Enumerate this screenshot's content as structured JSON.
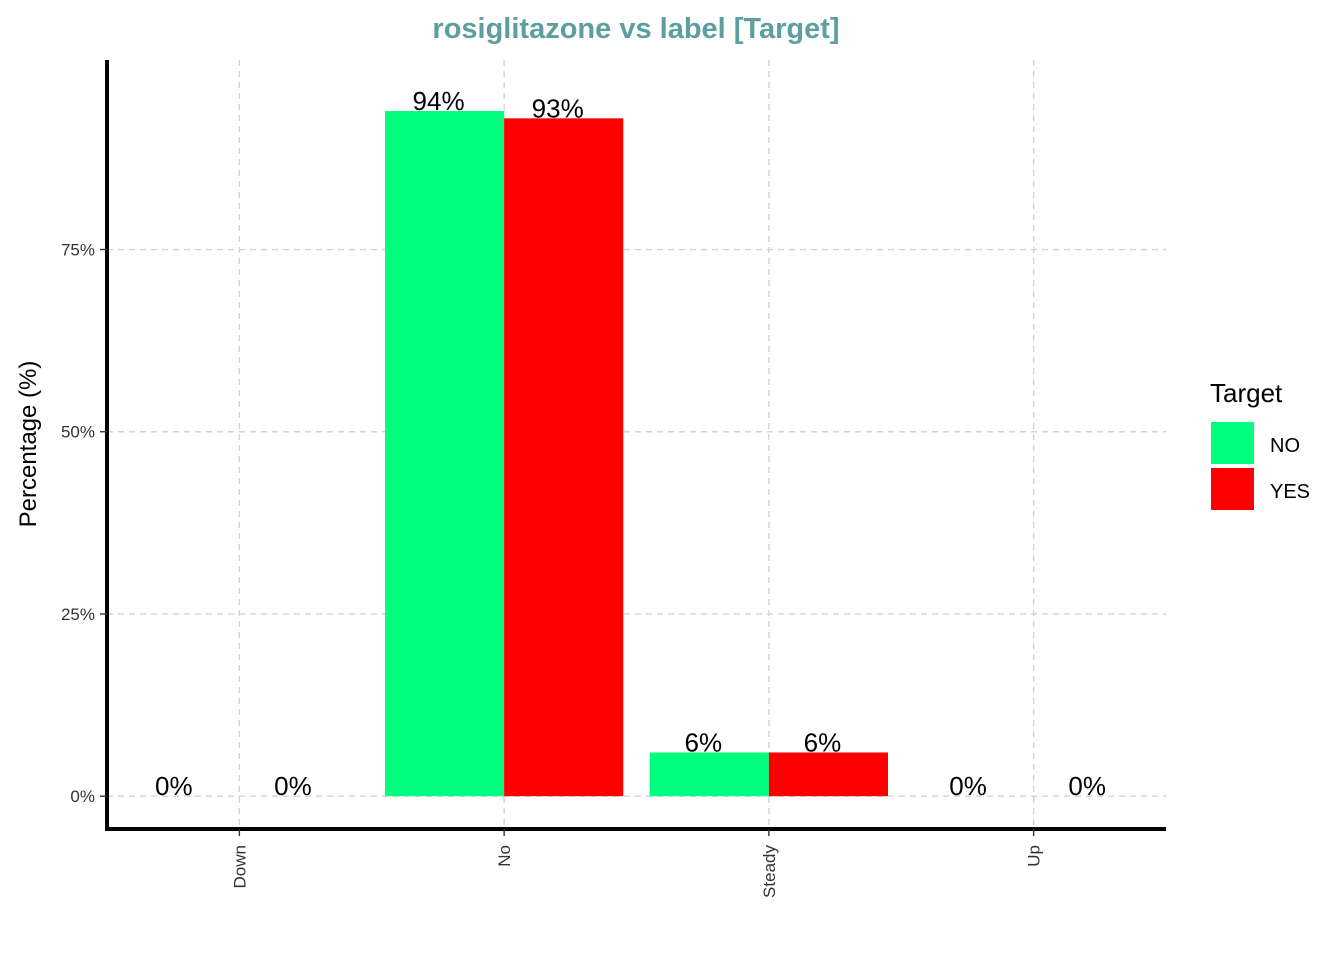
{
  "chart_data": {
    "type": "bar",
    "title": "rosiglitazone vs label [Target]",
    "xlabel": "",
    "ylabel": "Percentage (%)",
    "categories": [
      "Down",
      "No",
      "Steady",
      "Up"
    ],
    "series": [
      {
        "name": "NO",
        "color": "#00FF7F",
        "values": [
          0,
          94,
          6,
          0
        ],
        "labels": [
          "0%",
          "94%",
          "6%",
          "0%"
        ]
      },
      {
        "name": "YES",
        "color": "#FF0000",
        "values": [
          0,
          93,
          6,
          0
        ],
        "labels": [
          "0%",
          "93%",
          "6%",
          "0%"
        ]
      }
    ],
    "yticks": [
      0,
      25,
      50,
      75
    ],
    "ytick_labels": [
      "0%",
      "25%",
      "50%",
      "75%"
    ],
    "ylim": [
      -4.5,
      101
    ],
    "grid": true,
    "legend": {
      "title": "Target",
      "position": "right"
    },
    "colors": {
      "title": "#5F9EA0",
      "grid": "#D3D3D3",
      "axis": "#000000"
    }
  }
}
